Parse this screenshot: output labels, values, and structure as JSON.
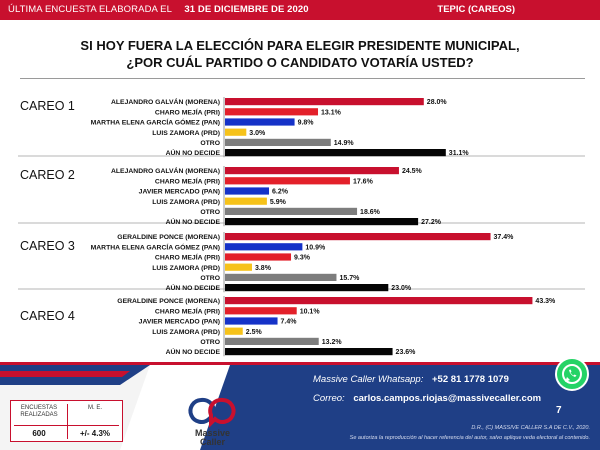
{
  "header": {
    "left_text": "ÚLTIMA ENCUESTA ELABORADA EL",
    "date": "31 DE DICIEMBRE DE 2020",
    "right_text": "TEPIC (CAREOS)"
  },
  "title_line1": "SI HOY FUERA LA ELECCIÓN PARA ELEGIR PRESIDENTE MUNICIPAL,",
  "title_line2": "¿POR CUÁL PARTIDO O CANDIDATO VOTARÍA USTED?",
  "colors": {
    "MORENA": "#c8102e",
    "PRI": "#e3202a",
    "PAN": "#1532c8",
    "PRD": "#f6c21a",
    "OTRO": "#7d7d7d",
    "NO_DECIDE": "#050505"
  },
  "chart_data": {
    "type": "bar",
    "orientation": "horizontal",
    "xlim": [
      0,
      45
    ],
    "groups": [
      {
        "name": "CAREO 1",
        "bars": [
          {
            "label": "ALEJANDRO GALVÁN (MORENA)",
            "value": 28.0,
            "display": "28.0%",
            "party": "MORENA"
          },
          {
            "label": "CHARO MEJÍA (PRI)",
            "value": 13.1,
            "display": "13.1%",
            "party": "PRI"
          },
          {
            "label": "MARTHA ELENA GARCÍA GÓMEZ (PAN)",
            "value": 9.8,
            "display": "9.8%",
            "party": "PAN"
          },
          {
            "label": "LUIS ZAMORA (PRD)",
            "value": 3.0,
            "display": "3.0%",
            "party": "PRD"
          },
          {
            "label": "OTRO",
            "value": 14.9,
            "display": "14.9%",
            "party": "OTRO"
          },
          {
            "label": "AÚN NO DECIDE",
            "value": 31.1,
            "display": "31.1%",
            "party": "NO_DECIDE"
          }
        ]
      },
      {
        "name": "CAREO 2",
        "bars": [
          {
            "label": "ALEJANDRO GALVÁN (MORENA)",
            "value": 24.5,
            "display": "24.5%",
            "party": "MORENA"
          },
          {
            "label": "CHARO MEJÍA (PRI)",
            "value": 17.6,
            "display": "17.6%",
            "party": "PRI"
          },
          {
            "label": "JAVIER MERCADO (PAN)",
            "value": 6.2,
            "display": "6.2%",
            "party": "PAN"
          },
          {
            "label": "LUIS ZAMORA (PRD)",
            "value": 5.9,
            "display": "5.9%",
            "party": "PRD"
          },
          {
            "label": "OTRO",
            "value": 18.6,
            "display": "18.6%",
            "party": "OTRO"
          },
          {
            "label": "AÚN NO DECIDE",
            "value": 27.2,
            "display": "27.2%",
            "party": "NO_DECIDE"
          }
        ]
      },
      {
        "name": "CAREO 3",
        "bars": [
          {
            "label": "GERALDINE PONCE (MORENA)",
            "value": 37.4,
            "display": "37.4%",
            "party": "MORENA"
          },
          {
            "label": "MARTHA ELENA GARCÍA GÓMEZ (PAN)",
            "value": 10.9,
            "display": "10.9%",
            "party": "PAN"
          },
          {
            "label": "CHARO MEJÍA (PRI)",
            "value": 9.3,
            "display": "9.3%",
            "party": "PRI"
          },
          {
            "label": "LUIS ZAMORA (PRD)",
            "value": 3.8,
            "display": "3.8%",
            "party": "PRD"
          },
          {
            "label": "OTRO",
            "value": 15.7,
            "display": "15.7%",
            "party": "OTRO"
          },
          {
            "label": "AÚN NO DECIDE",
            "value": 23.0,
            "display": "23.0%",
            "party": "NO_DECIDE"
          }
        ]
      },
      {
        "name": "CAREO 4",
        "bars": [
          {
            "label": "GERALDINE PONCE (MORENA)",
            "value": 43.3,
            "display": "43.3%",
            "party": "MORENA"
          },
          {
            "label": "CHARO MEJÍA (PRI)",
            "value": 10.1,
            "display": "10.1%",
            "party": "PRI"
          },
          {
            "label": "JAVIER MERCADO (PAN)",
            "value": 7.4,
            "display": "7.4%",
            "party": "PAN"
          },
          {
            "label": "LUIS ZAMORA (PRD)",
            "value": 2.5,
            "display": "2.5%",
            "party": "PRD"
          },
          {
            "label": "OTRO",
            "value": 13.2,
            "display": "13.2%",
            "party": "OTRO"
          },
          {
            "label": "AÚN NO DECIDE",
            "value": 23.6,
            "display": "23.6%",
            "party": "NO_DECIDE"
          }
        ]
      }
    ]
  },
  "stats": {
    "sample_header": "ENCUESTAS REALIZADAS",
    "sample_value": "600",
    "me_header": "M. E.",
    "me_value": "+/- 4.3%"
  },
  "brand": {
    "name_line1": "Massive",
    "name_line2": "Caller"
  },
  "contact": {
    "whatsapp_label": "Massive Caller Whatsapp:",
    "whatsapp_number": "+52 81 1778 1079",
    "email_label": "Correo:",
    "email": "carlos.campos.riojas@massivecaller.com"
  },
  "page_number": "7",
  "footer": {
    "copyright": "D.R., (C) MASSIVE CALLER S.A DE C.V., 2020.",
    "disclaimer": "Se autoriza la reproducción al hacer referencia del autor, salvo aplique veda electoral al contenido."
  }
}
